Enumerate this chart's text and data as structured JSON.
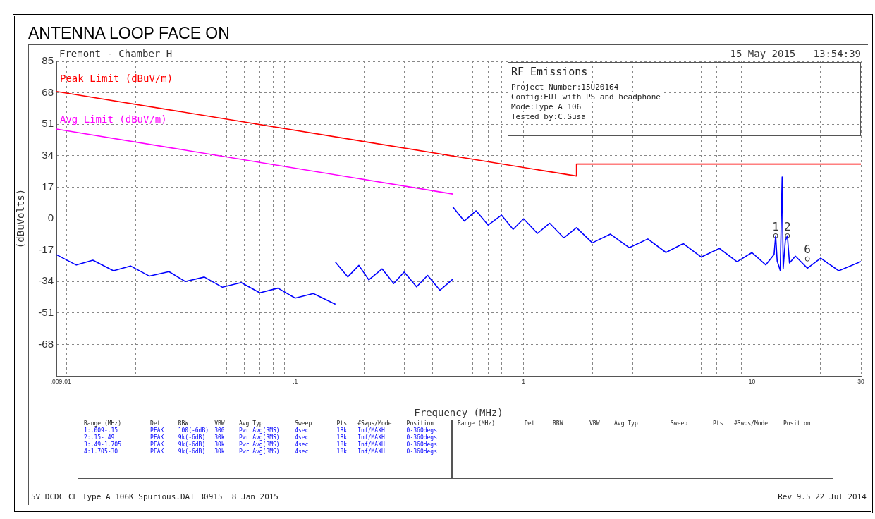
{
  "chart_data": {
    "type": "line",
    "title": "ANTENNA LOOP FACE ON",
    "subtitle": "Fremont - Chamber H",
    "xlabel": "Frequency (MHz)",
    "ylabel": "(dBuVolts)",
    "log": "x",
    "grid": true,
    "xlim": [
      0.009,
      30
    ],
    "ylim": [
      -85,
      85
    ],
    "xticks": [
      {
        "value": 0.009,
        "label": ".009"
      },
      {
        "value": 0.01,
        "label": ".01"
      },
      {
        "value": 0.02,
        "label": null
      },
      {
        "value": 0.03,
        "label": null
      },
      {
        "value": 0.04,
        "label": null
      },
      {
        "value": 0.05,
        "label": null
      },
      {
        "value": 0.06,
        "label": null
      },
      {
        "value": 0.07,
        "label": null
      },
      {
        "value": 0.08,
        "label": null
      },
      {
        "value": 0.09,
        "label": null
      },
      {
        "value": 0.1,
        "label": ".1"
      },
      {
        "value": 0.2,
        "label": null
      },
      {
        "value": 0.3,
        "label": null
      },
      {
        "value": 0.4,
        "label": null
      },
      {
        "value": 0.5,
        "label": null
      },
      {
        "value": 0.6,
        "label": null
      },
      {
        "value": 0.7,
        "label": null
      },
      {
        "value": 0.8,
        "label": null
      },
      {
        "value": 0.9,
        "label": null
      },
      {
        "value": 1,
        "label": "1"
      },
      {
        "value": 2,
        "label": null
      },
      {
        "value": 3,
        "label": null
      },
      {
        "value": 4,
        "label": null
      },
      {
        "value": 5,
        "label": null
      },
      {
        "value": 6,
        "label": null
      },
      {
        "value": 7,
        "label": null
      },
      {
        "value": 8,
        "label": null
      },
      {
        "value": 9,
        "label": null
      },
      {
        "value": 10,
        "label": "10"
      },
      {
        "value": 20,
        "label": null
      },
      {
        "value": 30,
        "label": "30"
      }
    ],
    "yticks": [
      85,
      68,
      51,
      34,
      17,
      0,
      -17,
      -34,
      -51,
      -68,
      {
        "value": -85,
        "label": null
      }
    ],
    "series": [
      {
        "name": "Peak Limit (dBuV/m)",
        "color": "#ff0000",
        "x": [
          0.009,
          1.705,
          1.705,
          30
        ],
        "values": [
          68.7,
          23,
          29.5,
          29.5
        ]
      },
      {
        "name": "Avg Limit (dBuV/m)",
        "color": "#ff00ff",
        "x": [
          0.009,
          0.49
        ],
        "values": [
          48.4,
          13.3
        ]
      },
      {
        "color": "#0000ff",
        "x": [
          0.009,
          0.011,
          0.013,
          0.016,
          0.019,
          0.023,
          0.028,
          0.033,
          0.04,
          0.048,
          0.058,
          0.07,
          0.084,
          0.1,
          0.12,
          0.15
        ],
        "values": [
          -19.5,
          -25.1,
          -22.5,
          -28.2,
          -25.6,
          -31.1,
          -28.7,
          -34.0,
          -31.6,
          -37.1,
          -34.6,
          -40.1,
          -37.6,
          -43.0,
          -40.5,
          -46.3
        ]
      },
      {
        "color": "#0000ff",
        "x": [
          0.15,
          0.17,
          0.19,
          0.21,
          0.24,
          0.27,
          0.3,
          0.34,
          0.38,
          0.43,
          0.49
        ],
        "values": [
          -23.5,
          -31.5,
          -25.3,
          -33.1,
          -27.2,
          -35.1,
          -28.9,
          -36.9,
          -30.7,
          -38.7,
          -32.7
        ]
      },
      {
        "color": "#0000ff",
        "x": [
          0.49,
          0.55,
          0.62,
          0.7,
          0.8,
          0.9,
          1.0,
          1.15,
          1.3,
          1.5,
          1.705,
          2,
          2.4,
          2.9,
          3.5,
          4.2,
          5,
          6,
          7.2,
          8.6,
          10,
          11.5,
          12.5,
          12.7,
          12.9,
          13.3,
          13.56,
          13.7,
          14.0,
          14.3,
          14.6,
          15.5,
          17.5,
          20,
          24,
          30
        ],
        "values": [
          6.3,
          -1.3,
          4.2,
          -3.5,
          1.9,
          -5.8,
          -0.1,
          -8.0,
          -2.5,
          -10.4,
          -4.9,
          -13.1,
          -8.4,
          -15.7,
          -11.0,
          -18.3,
          -13.5,
          -20.8,
          -16.1,
          -23.3,
          -18.4,
          -25.0,
          -19.4,
          -9.3,
          -23,
          -28,
          22.5,
          -27,
          -12,
          -9.3,
          -24,
          -20.3,
          -26.8,
          -21.4,
          -28.2,
          -23.2
        ]
      },
      {
        "type": "scatter",
        "marker": "circle",
        "color": "#333333",
        "x": [
          12.7,
          14.3,
          17.5
        ],
        "values": [
          -9.3,
          -9.3,
          -21.8
        ]
      }
    ],
    "annotations": [
      "15 May 2015   13:54:39",
      "RF Emissions",
      "Project Number:15U20164",
      "Config:EUT with PS and headphone",
      "Mode:Type A 106",
      "Tested by:C.Susa",
      "Range (MHz)  Det  RBW  VBW  Avg Typ  Sweep  Pts  #Swps/Mode  Position",
      "1:.009-.15  PEAK  100(-6dB)  300  Pwr Avg(RMS)  4sec  18k  Inf/MAXH  0-360degs",
      "2:.15-.49  PEAK  9k(-6dB)  30k  Pwr Avg(RMS)  4sec  18k  Inf/MAXH  0-360degs",
      "3:.49-1.705  PEAK  9k(-6dB)  30k  Pwr Avg(RMS)  4sec  18k  Inf/MAXH  0-360degs",
      "4:1.705-30  PEAK  9k(-6dB)  30k  Pwr Avg(RMS)  4sec  18k  Inf/MAXH  0-360degs",
      "Range (MHz)  Det  RBW  VBW  Avg Typ  Sweep  Pts  #Swps/Mode  Position",
      "5V DCDC CE Type A 106K Spurious.DAT 30915  8 Jan 2015",
      "Rev 9.5 22 Jul 2014",
      {
        "text": "1",
        "x": 12.7,
        "y": -9.3
      },
      {
        "text": "2",
        "x": 14.3,
        "y": -9.3
      },
      {
        "text": "6",
        "x": 17.5,
        "y": -21.8
      }
    ]
  }
}
